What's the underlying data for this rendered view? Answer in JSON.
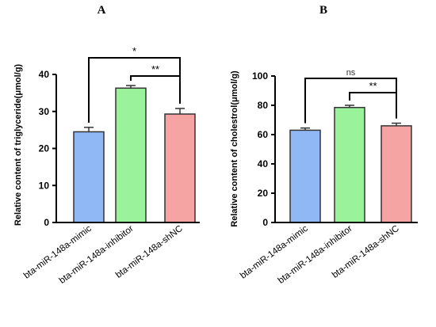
{
  "chart_data": [
    {
      "type": "bar",
      "panel_label": "A",
      "ylabel": "Relative content of triglyceride(μmol/g)",
      "categories": [
        "bta-miR-148a-mimic",
        "bta-miR-148a-inhibitor",
        "bta-miR-148a-shNC"
      ],
      "values": [
        24.5,
        36.3,
        29.3
      ],
      "errors": [
        1.2,
        0.7,
        1.5
      ],
      "colors": [
        "#8fb8f5",
        "#9af39a",
        "#f5a3a3"
      ],
      "ylim": [
        0,
        40
      ],
      "yticks": [
        "0",
        "10",
        "20",
        "30",
        "40"
      ],
      "significance": [
        {
          "from": 0,
          "to": 2,
          "label": "*"
        },
        {
          "from": 1,
          "to": 2,
          "label": "**"
        }
      ]
    },
    {
      "type": "bar",
      "panel_label": "B",
      "ylabel": "Relative content of cholestrol(μmol/g)",
      "categories": [
        "bta-miR-148a-mimic",
        "bta-miR-148a-inhibitor",
        "bta-miR-148a-shNC"
      ],
      "values": [
        63,
        78.5,
        66
      ],
      "errors": [
        1.5,
        1.5,
        1.8
      ],
      "colors": [
        "#8fb8f5",
        "#9af39a",
        "#f5a3a3"
      ],
      "ylim": [
        0,
        100
      ],
      "yticks": [
        "0",
        "20",
        "40",
        "60",
        "80",
        "100"
      ],
      "significance": [
        {
          "from": 0,
          "to": 2,
          "label": "ns"
        },
        {
          "from": 1,
          "to": 2,
          "label": "**"
        }
      ]
    }
  ]
}
